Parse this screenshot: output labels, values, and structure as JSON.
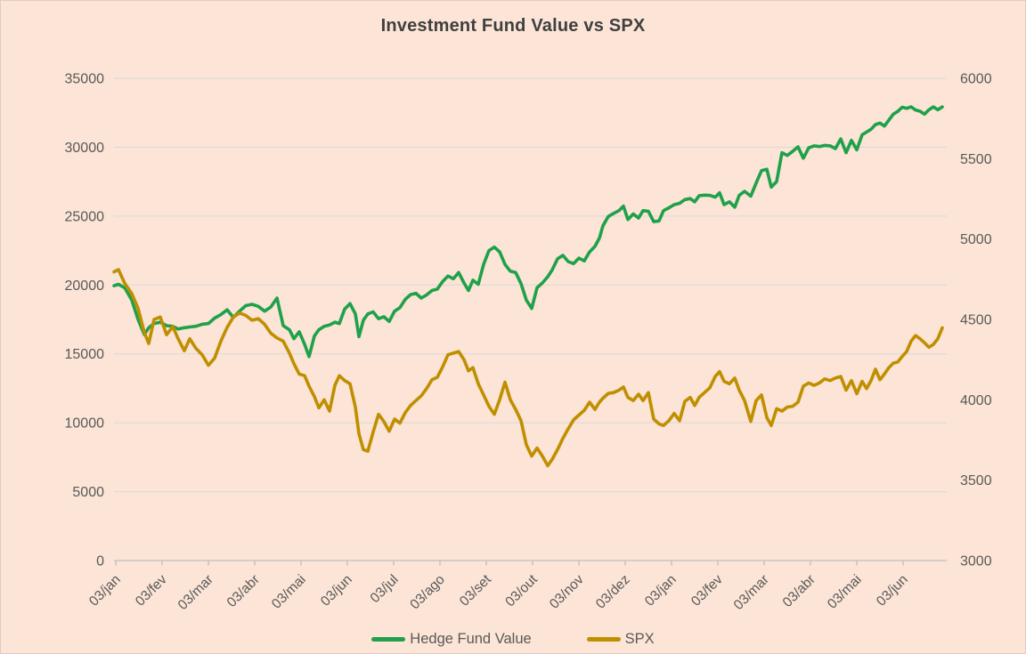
{
  "title": "Investment Fund Value vs SPX",
  "colors": {
    "background": "#FCE4D6",
    "hedge_fund": "#1FA14B",
    "spx": "#BF8F00",
    "grid": "#D9D9D9",
    "axis_line": "#BFBFBF",
    "axis_text": "#595959",
    "title_text": "#404040"
  },
  "legend": {
    "items": [
      {
        "label": "Hedge Fund Value"
      },
      {
        "label": "SPX"
      }
    ]
  },
  "chart_data": {
    "type": "line",
    "title": "Investment Fund Value vs SPX",
    "grid": true,
    "legend_position": "bottom",
    "x_tick_labels": [
      "03/jan",
      "03/fev",
      "03/mar",
      "03/abr",
      "03/mai",
      "03/jun",
      "03/jul",
      "03/ago",
      "03/set",
      "03/out",
      "03/nov",
      "03/dez",
      "03/jan",
      "03/fev",
      "03/mar",
      "03/abr",
      "03/mai",
      "03/jun"
    ],
    "x_tick_pos": [
      130,
      182,
      234,
      286,
      338,
      390,
      442,
      494,
      546,
      598,
      650,
      702,
      754,
      806,
      858,
      910,
      962,
      1014
    ],
    "x_range": [
      128,
      1063
    ],
    "left_axis": {
      "min": 0,
      "max": 35000,
      "ticks": [
        0,
        5000,
        10000,
        15000,
        20000,
        25000,
        30000,
        35000
      ]
    },
    "right_axis": {
      "min": 3000,
      "max": 6000,
      "ticks": [
        3000,
        3500,
        4000,
        4500,
        5000,
        5500,
        6000
      ]
    },
    "x": [
      128,
      133,
      140,
      148,
      155,
      162,
      167,
      173,
      180,
      187,
      194,
      200,
      207,
      213,
      220,
      227,
      234,
      241,
      248,
      255,
      262,
      269,
      276,
      283,
      290,
      297,
      304,
      311,
      318,
      325,
      330,
      336,
      342,
      347,
      353,
      358,
      364,
      370,
      376,
      381,
      387,
      393,
      399,
      403,
      408,
      413,
      419,
      425,
      431,
      437,
      443,
      449,
      455,
      461,
      467,
      473,
      479,
      485,
      491,
      497,
      503,
      509,
      515,
      521,
      526,
      531,
      537,
      543,
      549,
      555,
      561,
      567,
      573,
      579,
      585,
      591,
      597,
      603,
      609,
      615,
      620,
      626,
      632,
      638,
      644,
      650,
      656,
      662,
      668,
      673,
      677,
      683,
      689,
      695,
      700,
      705,
      711,
      717,
      722,
      728,
      734,
      740,
      745,
      751,
      757,
      763,
      769,
      775,
      780,
      785,
      791,
      797,
      803,
      808,
      813,
      819,
      825,
      830,
      836,
      843,
      849,
      855,
      861,
      866,
      872,
      878,
      884,
      890,
      896,
      902,
      908,
      914,
      920,
      926,
      932,
      938,
      944,
      950,
      956,
      962,
      968,
      973,
      978,
      983,
      988,
      993,
      998,
      1003,
      1008,
      1013,
      1018,
      1023,
      1028,
      1033,
      1038,
      1043,
      1048,
      1053,
      1058
    ],
    "series": [
      {
        "name": "Hedge Fund Value",
        "axis": "left",
        "color": "#1FA14B",
        "values": [
          19950,
          20050,
          19800,
          18900,
          17500,
          16400,
          16900,
          17200,
          17300,
          17050,
          17000,
          16800,
          16900,
          16950,
          17000,
          17150,
          17200,
          17600,
          17850,
          18200,
          17650,
          18100,
          18500,
          18600,
          18450,
          18100,
          18400,
          19050,
          17050,
          16750,
          16100,
          16600,
          15700,
          14800,
          16300,
          16750,
          17000,
          17100,
          17300,
          17200,
          18250,
          18650,
          17900,
          16250,
          17450,
          17900,
          18050,
          17550,
          17700,
          17350,
          18100,
          18350,
          18950,
          19300,
          19400,
          19050,
          19280,
          19600,
          19700,
          20250,
          20650,
          20450,
          20900,
          20150,
          19600,
          20350,
          20050,
          21500,
          22500,
          22750,
          22400,
          21500,
          21000,
          20900,
          20100,
          18900,
          18300,
          19800,
          20150,
          20600,
          21100,
          21900,
          22150,
          21700,
          21550,
          21950,
          21750,
          22400,
          22800,
          23400,
          24300,
          24970,
          25200,
          25400,
          25720,
          24750,
          25150,
          24860,
          25400,
          25350,
          24600,
          24650,
          25400,
          25600,
          25830,
          25930,
          26200,
          26270,
          26040,
          26480,
          26520,
          26500,
          26370,
          26690,
          25830,
          26040,
          25640,
          26500,
          26800,
          26450,
          27400,
          28300,
          28400,
          27100,
          27500,
          29600,
          29400,
          29700,
          30030,
          29200,
          29950,
          30100,
          30050,
          30130,
          30100,
          29900,
          30600,
          29600,
          30500,
          29810,
          30900,
          31100,
          31300,
          31640,
          31750,
          31530,
          31965,
          32400,
          32600,
          32900,
          32820,
          32930,
          32700,
          32610,
          32400,
          32715,
          32930,
          32715,
          32930
        ]
      },
      {
        "name": "SPX",
        "axis": "right",
        "color": "#BF8F00",
        "values": [
          4796,
          4810,
          4725,
          4660,
          4570,
          4420,
          4350,
          4500,
          4515,
          4405,
          4455,
          4380,
          4305,
          4380,
          4320,
          4280,
          4215,
          4260,
          4365,
          4450,
          4515,
          4540,
          4525,
          4495,
          4505,
          4470,
          4415,
          4385,
          4365,
          4290,
          4225,
          4160,
          4150,
          4085,
          4020,
          3950,
          4000,
          3930,
          4090,
          4150,
          4120,
          4100,
          3955,
          3790,
          3690,
          3680,
          3800,
          3910,
          3865,
          3805,
          3880,
          3855,
          3920,
          3965,
          3995,
          4025,
          4070,
          4125,
          4140,
          4205,
          4280,
          4290,
          4300,
          4250,
          4180,
          4200,
          4100,
          4030,
          3960,
          3910,
          4000,
          4110,
          4000,
          3940,
          3870,
          3720,
          3650,
          3700,
          3650,
          3590,
          3630,
          3690,
          3760,
          3820,
          3875,
          3905,
          3935,
          3985,
          3940,
          3985,
          4010,
          4040,
          4045,
          4060,
          4080,
          4015,
          3995,
          4035,
          3995,
          4045,
          3880,
          3850,
          3840,
          3870,
          3915,
          3870,
          3990,
          4015,
          3965,
          4015,
          4045,
          4075,
          4145,
          4175,
          4115,
          4100,
          4135,
          4060,
          3995,
          3865,
          3995,
          4030,
          3890,
          3840,
          3945,
          3930,
          3955,
          3960,
          3985,
          4085,
          4105,
          4090,
          4105,
          4130,
          4120,
          4135,
          4145,
          4060,
          4120,
          4038,
          4115,
          4070,
          4120,
          4190,
          4125,
          4160,
          4200,
          4228,
          4235,
          4270,
          4300,
          4365,
          4400,
          4380,
          4355,
          4327,
          4345,
          4380,
          4448
        ]
      }
    ]
  }
}
